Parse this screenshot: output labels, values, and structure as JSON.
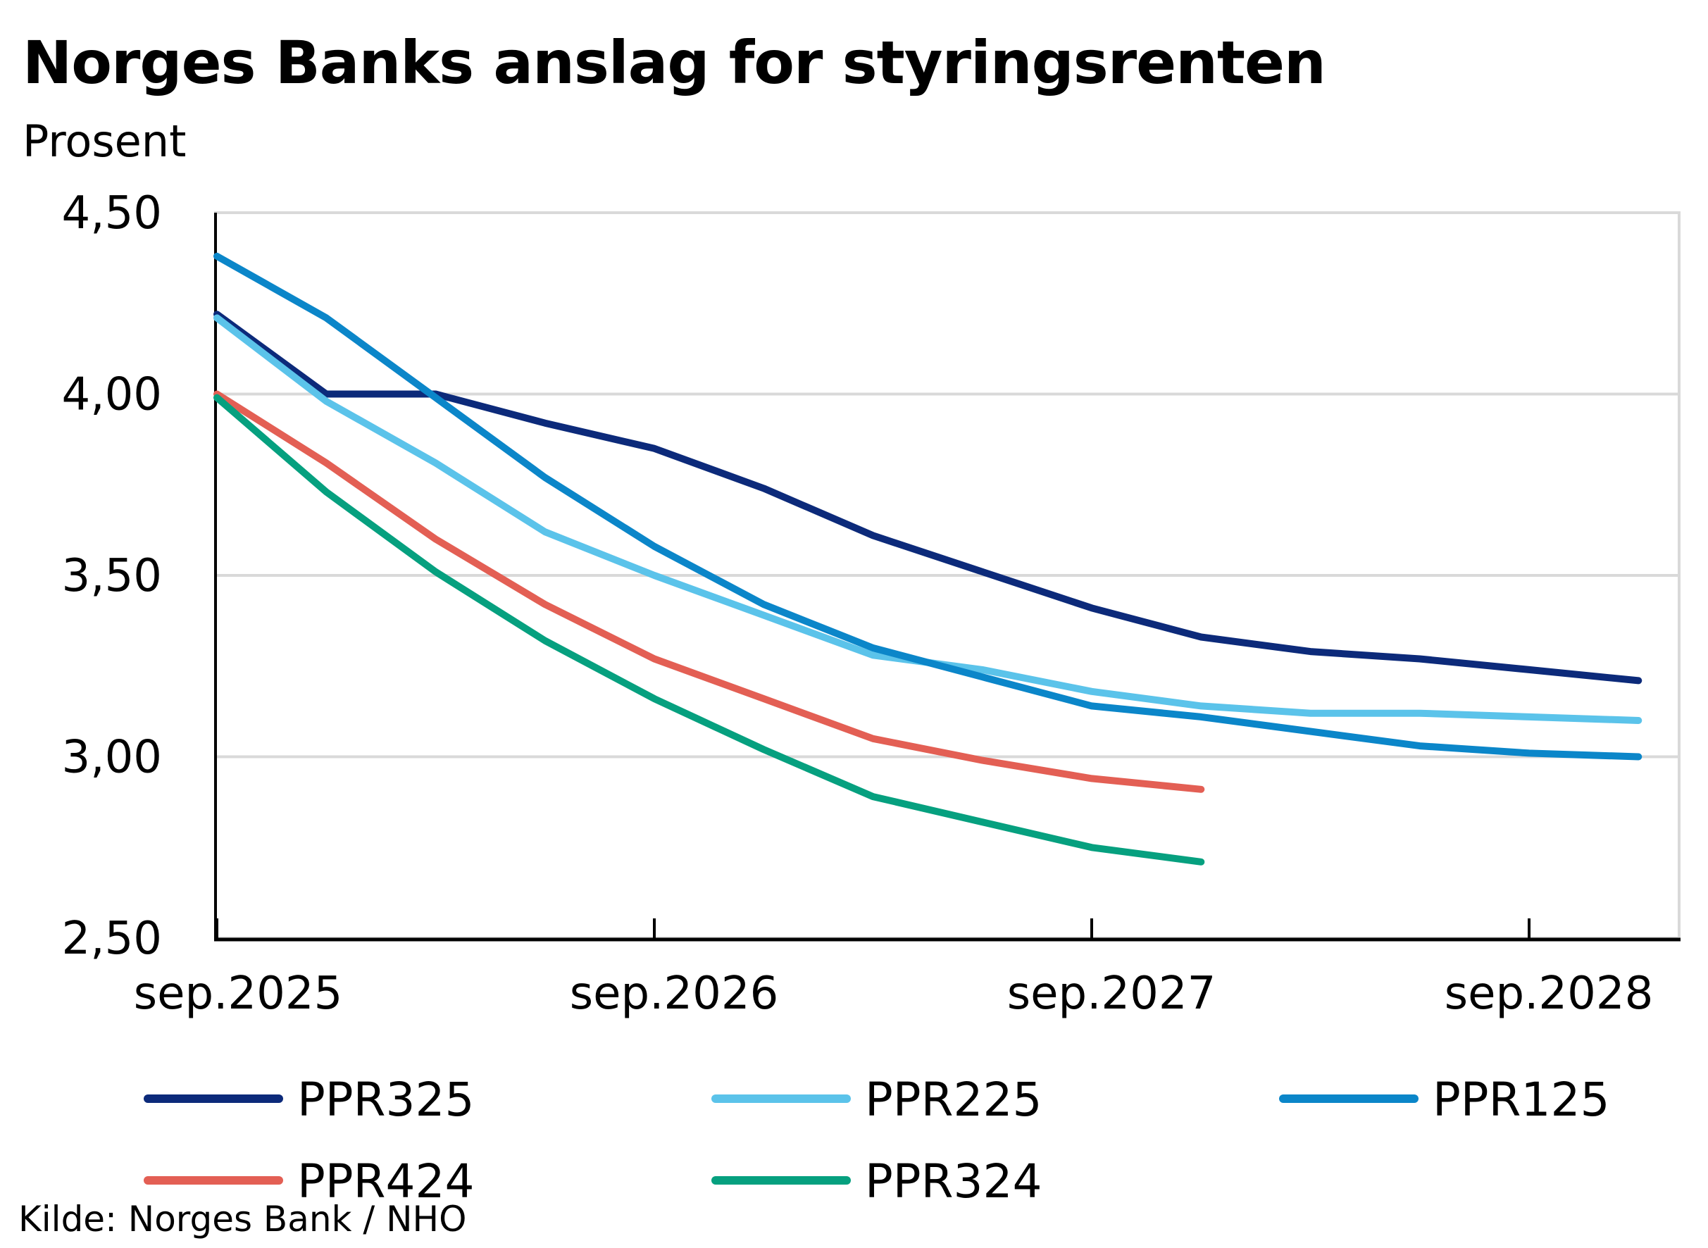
{
  "chart_data": {
    "type": "line",
    "title": "Norges Banks anslag for styringsrenten",
    "subtitle": "Prosent",
    "xlabel": "",
    "ylabel": "Prosent",
    "ylim": [
      2.5,
      4.5
    ],
    "y_ticks": [
      2.5,
      3.0,
      3.5,
      4.0,
      4.5
    ],
    "y_tick_labels": [
      "2,50",
      "3,00",
      "3,50",
      "4,00",
      "4,50"
    ],
    "x_range": [
      "2025-09",
      "2028-12"
    ],
    "x_ticks": [
      "2025-09",
      "2026-09",
      "2027-09",
      "2028-09"
    ],
    "x_tick_labels": [
      "sep.2025",
      "sep.2026",
      "sep.2027",
      "sep.2028"
    ],
    "grid": true,
    "legend_position": "bottom",
    "series": [
      {
        "name": "PPR325",
        "color": "#0c2a7a",
        "points": [
          [
            "2025-09",
            4.22
          ],
          [
            "2025-12",
            4.0
          ],
          [
            "2026-03",
            4.0
          ],
          [
            "2026-06",
            3.92
          ],
          [
            "2026-09",
            3.85
          ],
          [
            "2026-12",
            3.74
          ],
          [
            "2027-03",
            3.61
          ],
          [
            "2027-06",
            3.51
          ],
          [
            "2027-09",
            3.41
          ],
          [
            "2027-12",
            3.33
          ],
          [
            "2028-03",
            3.29
          ],
          [
            "2028-06",
            3.27
          ],
          [
            "2028-09",
            3.24
          ],
          [
            "2028-12",
            3.21
          ]
        ]
      },
      {
        "name": "PPR225",
        "color": "#5bc3ea",
        "points": [
          [
            "2025-09",
            4.21
          ],
          [
            "2025-12",
            3.98
          ],
          [
            "2026-03",
            3.81
          ],
          [
            "2026-06",
            3.62
          ],
          [
            "2026-09",
            3.5
          ],
          [
            "2026-12",
            3.39
          ],
          [
            "2027-03",
            3.28
          ],
          [
            "2027-06",
            3.24
          ],
          [
            "2027-09",
            3.18
          ],
          [
            "2027-12",
            3.14
          ],
          [
            "2028-03",
            3.12
          ],
          [
            "2028-06",
            3.12
          ],
          [
            "2028-09",
            3.11
          ],
          [
            "2028-12",
            3.1
          ]
        ]
      },
      {
        "name": "PPR125",
        "color": "#0b86c9",
        "points": [
          [
            "2025-09",
            4.38
          ],
          [
            "2025-12",
            4.21
          ],
          [
            "2026-03",
            3.99
          ],
          [
            "2026-06",
            3.77
          ],
          [
            "2026-09",
            3.58
          ],
          [
            "2026-12",
            3.42
          ],
          [
            "2027-03",
            3.3
          ],
          [
            "2027-06",
            3.22
          ],
          [
            "2027-09",
            3.14
          ],
          [
            "2027-12",
            3.11
          ],
          [
            "2028-03",
            3.07
          ],
          [
            "2028-06",
            3.03
          ],
          [
            "2028-09",
            3.01
          ],
          [
            "2028-12",
            3.0
          ]
        ]
      },
      {
        "name": "PPR424",
        "color": "#e35f54",
        "points": [
          [
            "2025-09",
            4.0
          ],
          [
            "2025-12",
            3.81
          ],
          [
            "2026-03",
            3.6
          ],
          [
            "2026-06",
            3.42
          ],
          [
            "2026-09",
            3.27
          ],
          [
            "2026-12",
            3.16
          ],
          [
            "2027-03",
            3.05
          ],
          [
            "2027-06",
            2.99
          ],
          [
            "2027-09",
            2.94
          ],
          [
            "2027-12",
            2.91
          ]
        ]
      },
      {
        "name": "PPR324",
        "color": "#06a07f",
        "points": [
          [
            "2025-09",
            3.99
          ],
          [
            "2025-12",
            3.73
          ],
          [
            "2026-03",
            3.51
          ],
          [
            "2026-06",
            3.32
          ],
          [
            "2026-09",
            3.16
          ],
          [
            "2026-12",
            3.02
          ],
          [
            "2027-03",
            2.89
          ],
          [
            "2027-06",
            2.82
          ],
          [
            "2027-09",
            2.75
          ],
          [
            "2027-12",
            2.71
          ]
        ]
      }
    ]
  },
  "source": "Kilde: Norges Bank / NHO"
}
